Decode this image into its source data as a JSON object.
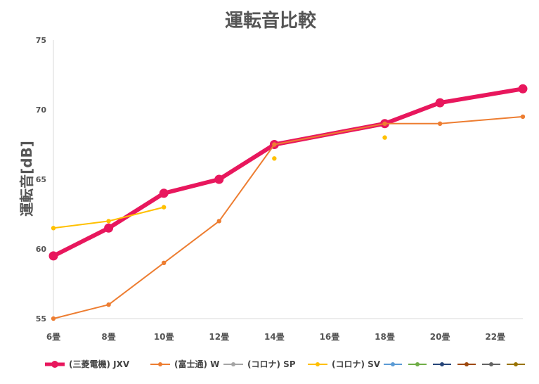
{
  "chart_data": {
    "type": "line",
    "title": "運転音比較",
    "xlabel": "",
    "ylabel": "運転音[dB]",
    "categories": [
      "6畳",
      "8畳",
      "10畳",
      "12畳",
      "14畳",
      "16畳",
      "18畳",
      "20畳",
      "22畳"
    ],
    "x_visible_ticks": [
      "6畳",
      "8畳",
      "10畳",
      "12畳",
      "14畳",
      "16畳",
      "18畳",
      "20畳",
      "22畳"
    ],
    "x": [
      6,
      8,
      10,
      12,
      14,
      16,
      18,
      20,
      22,
      23
    ],
    "xlim": [
      6,
      23
    ],
    "ylim": [
      55,
      75
    ],
    "yticks": [
      55,
      60,
      65,
      70,
      75
    ],
    "grid": false,
    "legend_position": "bottom",
    "series": [
      {
        "name": "(三菱電機) JXV",
        "color": "#e8175d",
        "points": [
          [
            6,
            59.5
          ],
          [
            8,
            61.5
          ],
          [
            10,
            64
          ],
          [
            12,
            65
          ],
          [
            14,
            67.5
          ],
          [
            18,
            69
          ],
          [
            20,
            70.5
          ],
          [
            23,
            71.5
          ]
        ]
      },
      {
        "name": "(富士通) W",
        "color": "#ed7d31",
        "points": [
          [
            6,
            55
          ],
          [
            8,
            56
          ],
          [
            10,
            59
          ],
          [
            12,
            62
          ],
          [
            14,
            67.5
          ],
          [
            18,
            69
          ],
          [
            20,
            69
          ],
          [
            23,
            69.5
          ]
        ]
      },
      {
        "name": "(コロナ) SP",
        "color": "#a5a5a5",
        "points": []
      },
      {
        "name": "(コロナ) SV",
        "color": "#ffc000",
        "points": [
          [
            6,
            61.5
          ],
          [
            8,
            62
          ],
          [
            10,
            63
          ],
          [
            14,
            66.5
          ],
          [
            18,
            68
          ]
        ]
      },
      {
        "name": "",
        "color": "#5b9bd5",
        "points": []
      },
      {
        "name": "",
        "color": "#70ad47",
        "points": []
      },
      {
        "name": "",
        "color": "#264478",
        "points": []
      },
      {
        "name": "",
        "color": "#9e480e",
        "points": []
      },
      {
        "name": "",
        "color": "#636363",
        "points": []
      },
      {
        "name": "",
        "color": "#997300",
        "points": []
      }
    ]
  }
}
